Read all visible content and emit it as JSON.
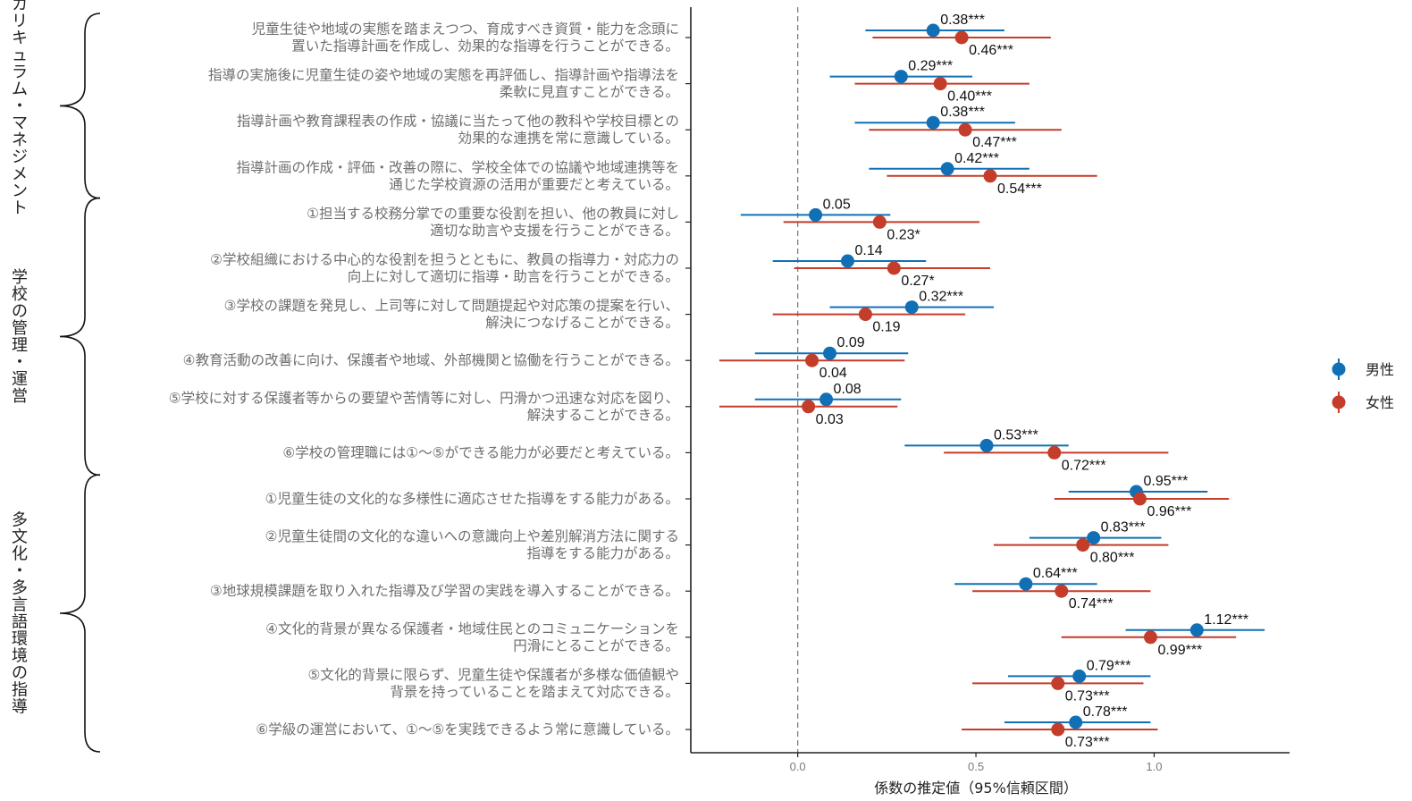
{
  "colors": {
    "male": "#1170b5",
    "female": "#c43c2a",
    "zero_line": "#7f7f7f",
    "axis": "#222222"
  },
  "chart_data": {
    "type": "scatter",
    "title": "",
    "xlabel": "係数の推定値（95%信頼区間）",
    "ylabel": "",
    "xlim": [
      -0.3,
      1.38
    ],
    "x_ticks": [
      0.0,
      0.5,
      1.0
    ],
    "x_tick_labels": [
      "0.0",
      "0.5",
      "1.0"
    ],
    "reference_line": 0.0,
    "grid": false,
    "legend_position": "right",
    "groups": [
      {
        "label": "カリキュラム・マネジメント",
        "first": 0,
        "last": 3
      },
      {
        "label": "学校の管理・運営",
        "first": 4,
        "last": 9
      },
      {
        "label": "多文化・多言語環境の指導",
        "first": 10,
        "last": 15
      }
    ],
    "categories": [
      [
        "児童生徒や地域の実態を踏まえつつ、育成すべき資質・能力を念頭に",
        "置いた指導計画を作成し、効果的な指導を行うことができる。"
      ],
      [
        "指導の実施後に児童生徒の姿や地域の実態を再評価し、指導計画や指導法を",
        "柔軟に見直すことができる。"
      ],
      [
        "指導計画や教育課程表の作成・協議に当たって他の教科や学校目標との",
        "効果的な連携を常に意識している。"
      ],
      [
        "指導計画の作成・評価・改善の際に、学校全体での協議や地域連携等を",
        "通じた学校資源の活用が重要だと考えている。"
      ],
      [
        "①担当する校務分掌での重要な役割を担い、他の教員に対し",
        "適切な助言や支援を行うことができる。"
      ],
      [
        "②学校組織における中心的な役割を担うとともに、教員の指導力・対応力の",
        "向上に対して適切に指導・助言を行うことができる。"
      ],
      [
        "③学校の課題を発見し、上司等に対して問題提起や対応策の提案を行い、",
        "解決につなげることができる。"
      ],
      [
        "④教育活動の改善に向け、保護者や地域、外部機関と協働を行うことができる。"
      ],
      [
        "⑤学校に対する保護者等からの要望や苦情等に対し、円滑かつ迅速な対応を図り、",
        "解決することができる。"
      ],
      [
        "⑥学校の管理職には①～⑤ができる能力が必要だと考えている。"
      ],
      [
        "①児童生徒の文化的な多様性に適応させた指導をする能力がある。"
      ],
      [
        "②児童生徒間の文化的な違いへの意識向上や差別解消方法に関する",
        "指導をする能力がある。"
      ],
      [
        "③地球規模課題を取り入れた指導及び学習の実践を導入することができる。"
      ],
      [
        "④文化的背景が異なる保護者・地域住民とのコミュニケーションを",
        "円滑にとることができる。"
      ],
      [
        "⑤文化的背景に限らず、児童生徒や保護者が多様な価値観や",
        "背景を持っていることを踏まえて対応できる。"
      ],
      [
        "⑥学級の運営において、①～⑤を実践できるよう常に意識している。"
      ]
    ],
    "series": [
      {
        "name": "男性",
        "values": [
          0.38,
          0.29,
          0.38,
          0.42,
          0.05,
          0.14,
          0.32,
          0.09,
          0.08,
          0.53,
          0.95,
          0.83,
          0.64,
          1.12,
          0.79,
          0.78
        ],
        "ci_low": [
          0.19,
          0.09,
          0.16,
          0.2,
          -0.16,
          -0.07,
          0.09,
          -0.12,
          -0.12,
          0.3,
          0.76,
          0.65,
          0.44,
          0.92,
          0.59,
          0.58
        ],
        "ci_high": [
          0.58,
          0.49,
          0.61,
          0.65,
          0.26,
          0.36,
          0.55,
          0.31,
          0.29,
          0.76,
          1.15,
          1.02,
          0.84,
          1.31,
          0.99,
          0.99
        ],
        "labels": [
          "0.38***",
          "0.29***",
          "0.38***",
          "0.42***",
          "0.05",
          "0.14",
          "0.32***",
          "0.09",
          "0.08",
          "0.53***",
          "0.95***",
          "0.83***",
          "0.64***",
          "1.12***",
          "0.79***",
          "0.78***"
        ]
      },
      {
        "name": "女性",
        "values": [
          0.46,
          0.4,
          0.47,
          0.54,
          0.23,
          0.27,
          0.19,
          0.04,
          0.03,
          0.72,
          0.96,
          0.8,
          0.74,
          0.99,
          0.73,
          0.73
        ],
        "ci_low": [
          0.21,
          0.16,
          0.2,
          0.25,
          -0.04,
          -0.01,
          -0.07,
          -0.22,
          -0.22,
          0.41,
          0.72,
          0.55,
          0.49,
          0.74,
          0.49,
          0.46
        ],
        "ci_high": [
          0.71,
          0.65,
          0.74,
          0.84,
          0.51,
          0.54,
          0.47,
          0.3,
          0.28,
          1.04,
          1.21,
          1.04,
          0.99,
          1.23,
          0.97,
          1.01
        ],
        "labels": [
          "0.46***",
          "0.40***",
          "0.47***",
          "0.54***",
          "0.23*",
          "0.27*",
          "0.19",
          "0.04",
          "0.03",
          "0.72***",
          "0.96***",
          "0.80***",
          "0.74***",
          "0.99***",
          "0.73***",
          "0.73***"
        ]
      }
    ]
  }
}
